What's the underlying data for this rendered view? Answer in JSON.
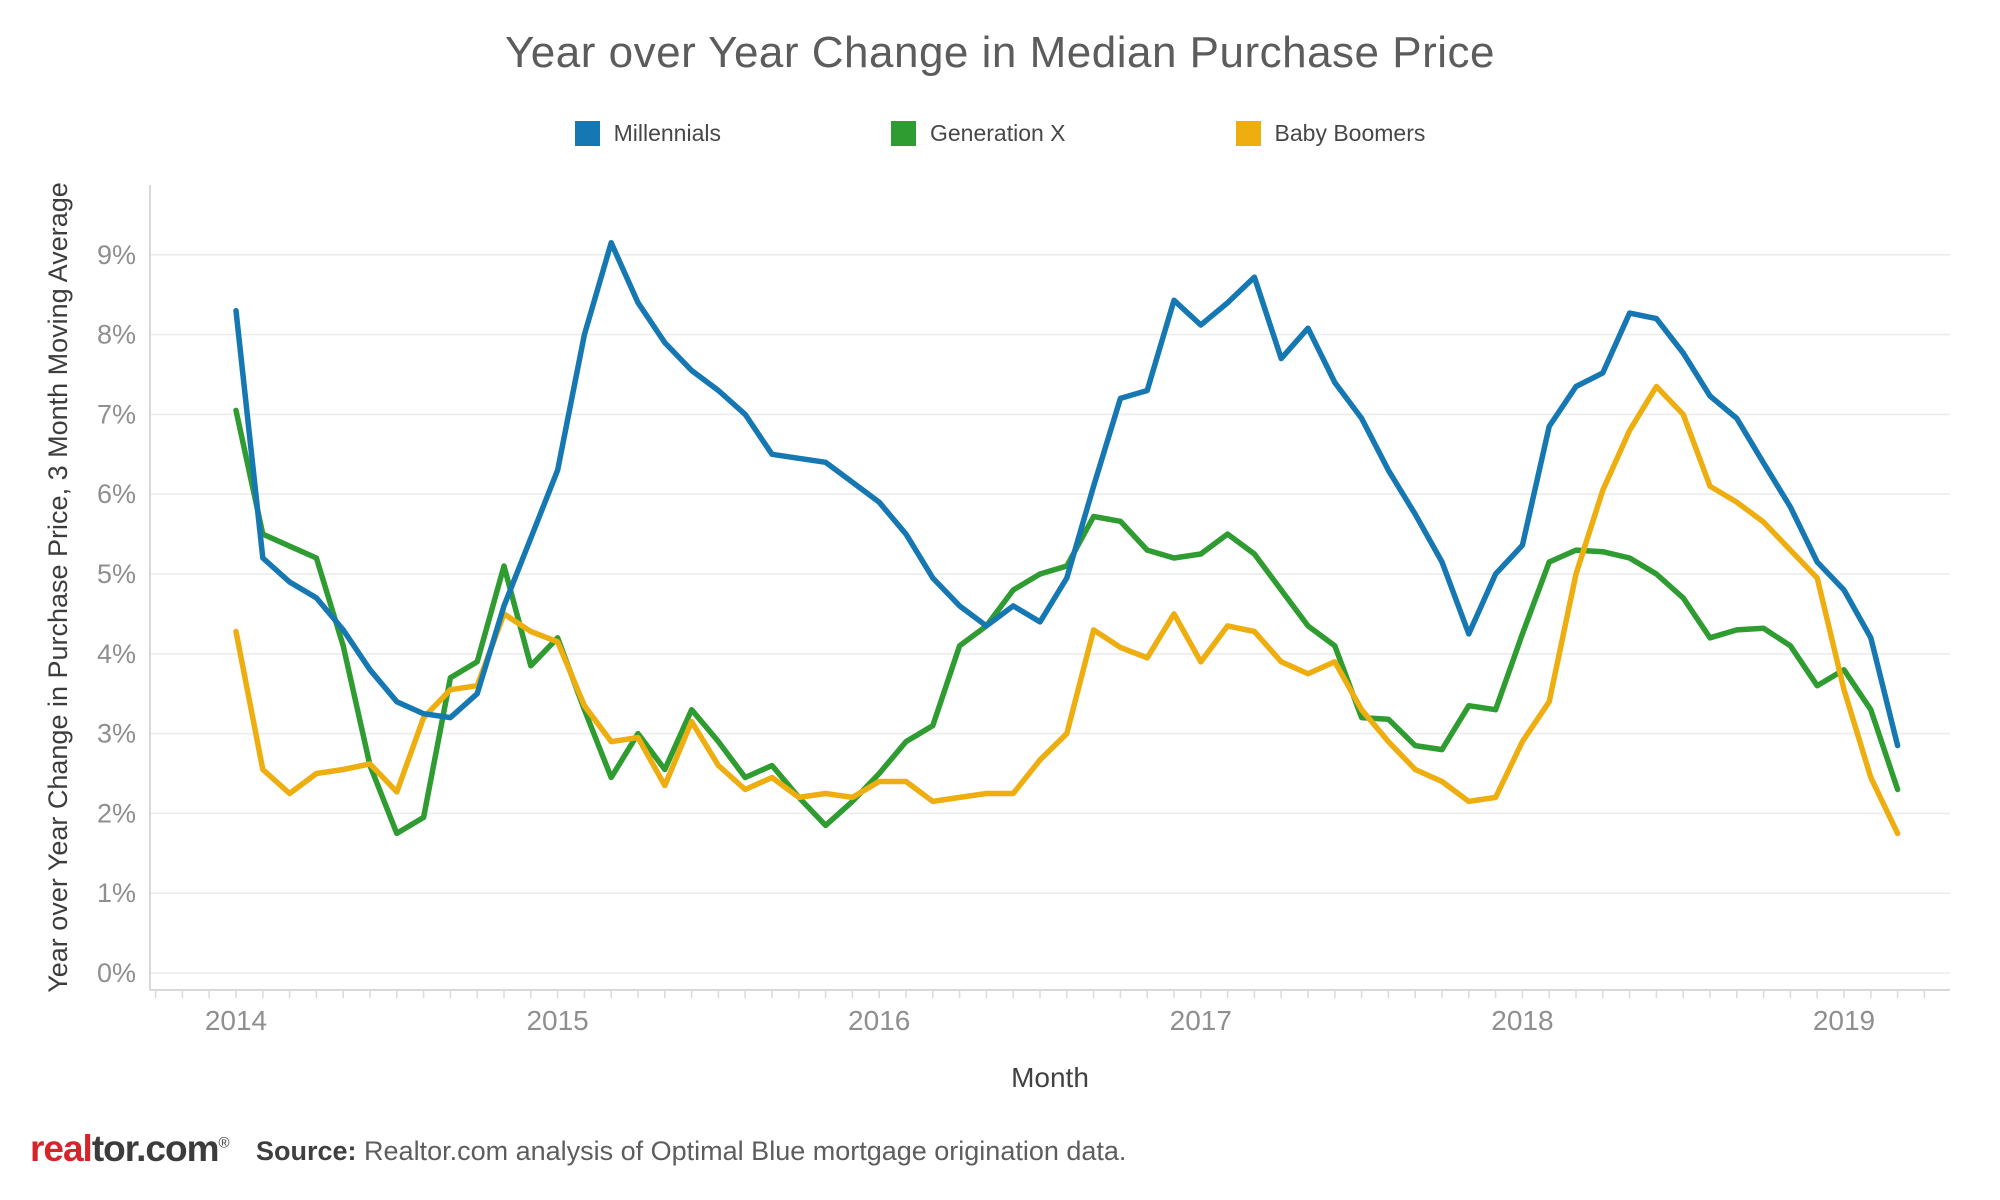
{
  "title": "Year over Year Change in Median Purchase Price",
  "legend": {
    "position": "top",
    "items": [
      {
        "label": "Millennials",
        "color": "#1678b3"
      },
      {
        "label": "Generation X",
        "color": "#2f9c31"
      },
      {
        "label": "Baby Boomers",
        "color": "#eeae10"
      }
    ]
  },
  "axes": {
    "y_title": "Year over Year Change in Purchase Price, 3 Month Moving Average",
    "x_title": "Month"
  },
  "footer": {
    "logo_real": "real",
    "logo_tor": "tor.com",
    "logo_reg": "®",
    "source_label": "Source:",
    "source_text": " Realtor.com analysis of Optimal Blue mortgage origination data."
  },
  "chart_data": {
    "type": "line",
    "title": "Year over Year Change in Median Purchase Price",
    "xlabel": "Month",
    "ylabel": "Year over Year Change in Purchase Price, 3 Month Moving Average",
    "ylim": [
      0,
      9.6
    ],
    "grid": "horizontal",
    "legend_position": "top",
    "ytick_labels": [
      "0%",
      "1%",
      "2%",
      "3%",
      "4%",
      "5%",
      "6%",
      "7%",
      "8%",
      "9%"
    ],
    "xtick_labels": [
      "2014",
      "2015",
      "2016",
      "2017",
      "2018",
      "2019"
    ],
    "x": [
      "2014-01",
      "2014-02",
      "2014-03",
      "2014-04",
      "2014-05",
      "2014-06",
      "2014-07",
      "2014-08",
      "2014-09",
      "2014-10",
      "2014-11",
      "2014-12",
      "2015-01",
      "2015-02",
      "2015-03",
      "2015-04",
      "2015-05",
      "2015-06",
      "2015-07",
      "2015-08",
      "2015-09",
      "2015-10",
      "2015-11",
      "2015-12",
      "2016-01",
      "2016-02",
      "2016-03",
      "2016-04",
      "2016-05",
      "2016-06",
      "2016-07",
      "2016-08",
      "2016-09",
      "2016-10",
      "2016-11",
      "2016-12",
      "2017-01",
      "2017-02",
      "2017-03",
      "2017-04",
      "2017-05",
      "2017-06",
      "2017-07",
      "2017-08",
      "2017-09",
      "2017-10",
      "2017-11",
      "2017-12",
      "2018-01",
      "2018-02",
      "2018-03",
      "2018-04",
      "2018-05",
      "2018-06",
      "2018-07",
      "2018-08",
      "2018-09",
      "2018-10",
      "2018-11",
      "2018-12",
      "2019-01",
      "2019-02",
      "2019-03"
    ],
    "series": [
      {
        "name": "Millennials",
        "color": "#1678b3",
        "values": [
          8.3,
          5.2,
          4.9,
          4.7,
          4.3,
          3.8,
          3.4,
          3.25,
          3.2,
          3.5,
          4.6,
          5.45,
          6.3,
          8.0,
          9.15,
          8.4,
          7.9,
          7.55,
          7.3,
          7.0,
          6.5,
          6.45,
          6.4,
          6.15,
          5.9,
          5.5,
          4.95,
          4.6,
          4.35,
          4.6,
          4.4,
          4.95,
          6.1,
          7.2,
          7.3,
          8.43,
          8.12,
          8.4,
          8.72,
          7.7,
          8.08,
          7.4,
          6.95,
          6.3,
          5.75,
          5.15,
          4.25,
          5.0,
          5.36,
          6.85,
          7.35,
          7.52,
          8.27,
          8.2,
          7.77,
          7.23,
          6.95,
          6.39,
          5.84,
          5.15,
          4.8,
          4.2,
          2.85
        ]
      },
      {
        "name": "Generation X",
        "color": "#2f9c31",
        "values": [
          7.05,
          5.5,
          5.35,
          5.2,
          4.1,
          2.6,
          1.75,
          1.95,
          3.7,
          3.9,
          5.1,
          3.85,
          4.2,
          3.3,
          2.45,
          3.0,
          2.55,
          3.3,
          2.9,
          2.45,
          2.6,
          2.2,
          1.85,
          2.15,
          2.5,
          2.9,
          3.1,
          4.1,
          4.35,
          4.8,
          5.0,
          5.1,
          5.72,
          5.66,
          5.3,
          5.2,
          5.25,
          5.5,
          5.25,
          4.8,
          4.35,
          4.1,
          3.2,
          3.18,
          2.85,
          2.8,
          3.35,
          3.3,
          4.25,
          5.15,
          5.3,
          5.28,
          5.2,
          5.0,
          4.7,
          4.2,
          4.3,
          4.32,
          4.1,
          3.6,
          3.8,
          3.3,
          2.3
        ]
      },
      {
        "name": "Baby Boomers",
        "color": "#eeae10",
        "values": [
          4.28,
          2.55,
          2.25,
          2.5,
          2.55,
          2.62,
          2.27,
          3.2,
          3.55,
          3.6,
          4.5,
          4.28,
          4.15,
          3.35,
          2.9,
          2.95,
          2.35,
          3.15,
          2.6,
          2.3,
          2.45,
          2.2,
          2.25,
          2.2,
          2.4,
          2.4,
          2.15,
          2.2,
          2.25,
          2.25,
          2.67,
          3.0,
          4.3,
          4.08,
          3.95,
          4.5,
          3.9,
          4.35,
          4.28,
          3.9,
          3.75,
          3.9,
          3.3,
          2.9,
          2.55,
          2.4,
          2.15,
          2.2,
          2.9,
          3.4,
          5.0,
          6.05,
          6.8,
          7.35,
          7.0,
          6.1,
          5.9,
          5.65,
          5.3,
          4.95,
          3.55,
          2.45,
          1.75
        ]
      }
    ]
  }
}
